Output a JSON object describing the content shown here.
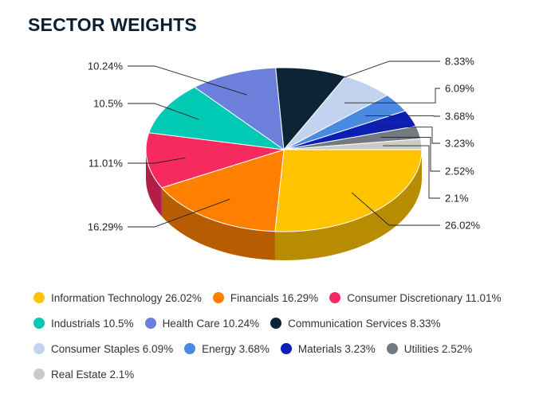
{
  "chart_data": {
    "type": "pie",
    "title": "SECTOR WEIGHTS",
    "slices": [
      {
        "name": "Information Technology",
        "value": 26.02,
        "label": "26.02%",
        "color": "#FFC300"
      },
      {
        "name": "Financials",
        "value": 16.29,
        "label": "16.29%",
        "color": "#FF8000"
      },
      {
        "name": "Consumer Discretionary",
        "value": 11.01,
        "label": "11.01%",
        "color": "#F72A60"
      },
      {
        "name": "Industrials",
        "value": 10.5,
        "label": "10.5%",
        "color": "#00C9B4"
      },
      {
        "name": "Health Care",
        "value": 10.24,
        "label": "10.24%",
        "color": "#6B7FDB"
      },
      {
        "name": "Communication Services",
        "value": 8.33,
        "label": "8.33%",
        "color": "#0B2436"
      },
      {
        "name": "Consumer Staples",
        "value": 6.09,
        "label": "6.09%",
        "color": "#C2D3EF"
      },
      {
        "name": "Energy",
        "value": 3.68,
        "label": "3.68%",
        "color": "#4A8AE0"
      },
      {
        "name": "Materials",
        "value": 3.23,
        "label": "3.23%",
        "color": "#0D1FB3"
      },
      {
        "name": "Utilities",
        "value": 2.52,
        "label": "2.52%",
        "color": "#737B80"
      },
      {
        "name": "Real Estate",
        "value": 2.1,
        "label": "2.1%",
        "color": "#C8CBC8"
      }
    ],
    "legend": {
      "position": "bottom",
      "entries": [
        "Information Technology 26.02%",
        "Financials 16.29%",
        "Consumer Discretionary 11.01%",
        "Industrials 10.5%",
        "Health Care 10.24%",
        "Communication Services 8.33%",
        "Consumer Staples 6.09%",
        "Energy 3.68%",
        "Materials 3.23%",
        "Utilities 2.52%",
        "Real Estate 2.1%"
      ]
    },
    "style": "3d-pie"
  }
}
